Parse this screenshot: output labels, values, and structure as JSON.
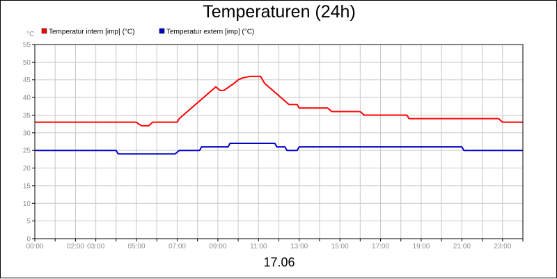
{
  "colors": {
    "grid": "#c8c8c8",
    "tick_text": "#8c8c8c",
    "frame": "#000000"
  },
  "chart_data": {
    "type": "line",
    "title": "Temperaturen (24h)",
    "subtitle": "17.06",
    "y_unit": "°C",
    "ylim": [
      0,
      55
    ],
    "y_ticks": [
      "0",
      "5",
      "10",
      "15",
      "20",
      "25",
      "30",
      "35",
      "40",
      "45",
      "50",
      "55"
    ],
    "xlim_hours": [
      0,
      24
    ],
    "x_tick_labels": [
      "00:00",
      "02:00",
      "03:00",
      "05:00",
      "07:00",
      "09:00",
      "11:00",
      "13:00",
      "15:00",
      "17:00",
      "19:00",
      "21:00",
      "23:00"
    ],
    "x_tick_hours": [
      0,
      2,
      3,
      5,
      7,
      9,
      11,
      13,
      15,
      17,
      19,
      21,
      23
    ],
    "grid": true,
    "legend": "top-left",
    "series": [
      {
        "name": "Temperatur intern [imp] (°C)",
        "color": "#ff0000",
        "x": [
          0,
          5.0,
          5.1,
          5.25,
          5.6,
          5.8,
          6.0,
          7.0,
          7.1,
          7.3,
          7.5,
          7.7,
          7.9,
          8.1,
          8.3,
          8.5,
          8.7,
          8.9,
          9.1,
          9.3,
          9.8,
          10.0,
          10.2,
          10.6,
          10.8,
          11.1,
          11.3,
          11.5,
          11.7,
          11.9,
          12.1,
          12.3,
          12.5,
          12.9,
          13.0,
          14.4,
          14.6,
          16.0,
          16.2,
          18.3,
          18.4,
          22.8,
          23.0,
          24
        ],
        "values": [
          33,
          33,
          32.5,
          32,
          32,
          33,
          33,
          33,
          34,
          35,
          36,
          37,
          38,
          39,
          40,
          41,
          42,
          43,
          42,
          42,
          44,
          45,
          45.5,
          46,
          46,
          46,
          44,
          43,
          42,
          41,
          40,
          39,
          38,
          38,
          37,
          37,
          36,
          36,
          35,
          35,
          34,
          34,
          33,
          33
        ]
      },
      {
        "name": "Temperatur extern [imp] (°C)",
        "color": "#0000cc",
        "x": [
          0,
          4.0,
          4.1,
          6.9,
          7.1,
          8.1,
          8.2,
          9.5,
          9.6,
          11.8,
          11.9,
          12.3,
          12.4,
          12.9,
          13.0,
          21.0,
          21.1,
          24
        ],
        "values": [
          25,
          25,
          24,
          24,
          25,
          25,
          26,
          26,
          27,
          27,
          26,
          26,
          25,
          25,
          26,
          26,
          25,
          25
        ]
      }
    ]
  }
}
